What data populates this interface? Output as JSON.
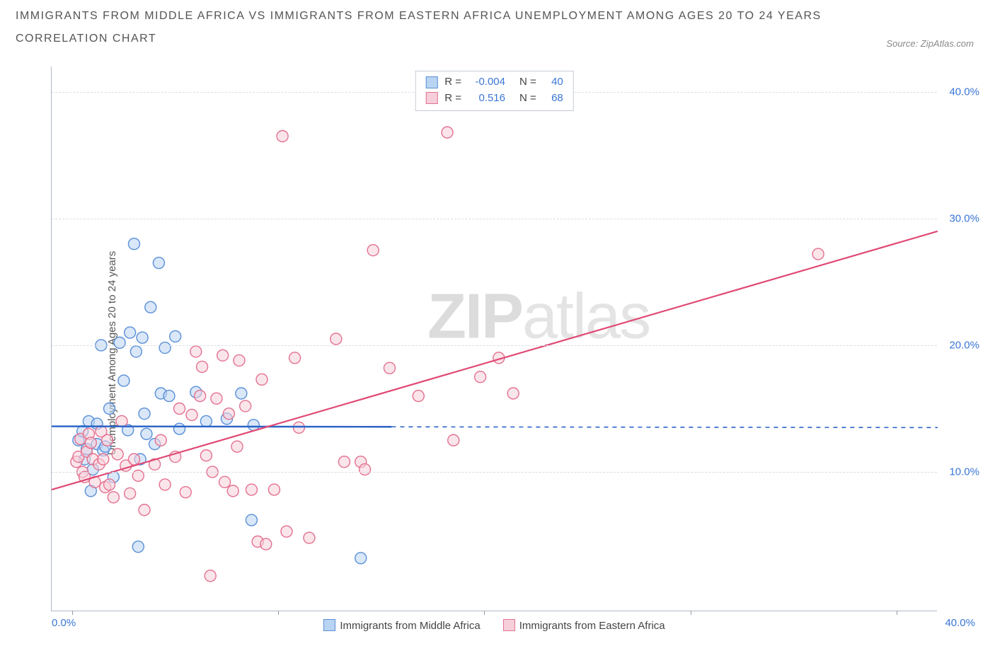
{
  "title_line1": "IMMIGRANTS FROM MIDDLE AFRICA VS IMMIGRANTS FROM EASTERN AFRICA UNEMPLOYMENT AMONG AGES 20 TO 24 YEARS",
  "title_line2": "CORRELATION CHART",
  "source_label": "Source:",
  "source_value": "ZipAtlas.com",
  "y_axis_label": "Unemployment Among Ages 20 to 24 years",
  "watermark_bold": "ZIP",
  "watermark_light": "atlas",
  "legend_top": {
    "rows": [
      {
        "swatch_fill": "#b9d4f2",
        "swatch_border": "#5a8fd8",
        "r_label": "R =",
        "r_value": "-0.004",
        "n_label": "N =",
        "n_value": "40"
      },
      {
        "swatch_fill": "#f6cfda",
        "swatch_border": "#e4718f",
        "r_label": "R =",
        "r_value": "0.516",
        "n_label": "N =",
        "n_value": "68"
      }
    ]
  },
  "legend_bottom": {
    "items": [
      {
        "swatch_fill": "#b9d4f2",
        "swatch_border": "#5a8fd8",
        "label": "Immigrants from Middle Africa"
      },
      {
        "swatch_fill": "#f6cfda",
        "swatch_border": "#e4718f",
        "label": "Immigrants from Eastern Africa"
      }
    ]
  },
  "chart": {
    "type": "scatter",
    "xlim": [
      -1,
      42
    ],
    "ylim": [
      -1,
      42
    ],
    "x_min_label": "0.0%",
    "x_max_label": "40.0%",
    "x_ticks": [
      0,
      10,
      20,
      30,
      40
    ],
    "y_ticks": [
      {
        "value": 10,
        "label": "10.0%"
      },
      {
        "value": 20,
        "label": "20.0%"
      },
      {
        "value": 30,
        "label": "30.0%"
      },
      {
        "value": 40,
        "label": "40.0%"
      }
    ],
    "grid_color": "#d8dce2",
    "background_color": "#ffffff",
    "marker_radius": 8,
    "marker_stroke_width": 1.4,
    "series": [
      {
        "name": "Immigrants from Middle Africa",
        "fill": "#b9d4f2",
        "stroke": "#5a8fd8",
        "fill_opacity": 0.55,
        "trend": {
          "color": "#2a63c7",
          "width": 2.4,
          "solid_xmax": 15.5,
          "y1": 13.6,
          "y2": 13.5
        },
        "points": [
          [
            0.3,
            12.5
          ],
          [
            0.5,
            13.2
          ],
          [
            0.6,
            11.0
          ],
          [
            0.7,
            11.8
          ],
          [
            0.8,
            14.0
          ],
          [
            0.9,
            8.5
          ],
          [
            1.0,
            10.2
          ],
          [
            1.2,
            13.8
          ],
          [
            1.2,
            12.2
          ],
          [
            1.4,
            20.0
          ],
          [
            1.5,
            11.7
          ],
          [
            1.6,
            12.0
          ],
          [
            1.8,
            15.0
          ],
          [
            2.0,
            9.6
          ],
          [
            2.3,
            20.2
          ],
          [
            2.5,
            17.2
          ],
          [
            2.7,
            13.3
          ],
          [
            2.8,
            21.0
          ],
          [
            3.0,
            28.0
          ],
          [
            3.1,
            19.5
          ],
          [
            3.3,
            11.0
          ],
          [
            3.4,
            20.6
          ],
          [
            3.5,
            14.6
          ],
          [
            3.6,
            13.0
          ],
          [
            3.8,
            23.0
          ],
          [
            4.0,
            12.2
          ],
          [
            4.2,
            26.5
          ],
          [
            4.3,
            16.2
          ],
          [
            4.5,
            19.8
          ],
          [
            4.7,
            16.0
          ],
          [
            5.0,
            20.7
          ],
          [
            5.2,
            13.4
          ],
          [
            6.0,
            16.3
          ],
          [
            6.5,
            14.0
          ],
          [
            7.5,
            14.2
          ],
          [
            8.2,
            16.2
          ],
          [
            8.7,
            6.2
          ],
          [
            8.8,
            13.7
          ],
          [
            3.2,
            4.1
          ],
          [
            14.0,
            3.2
          ]
        ]
      },
      {
        "name": "Immigrants from Eastern Africa",
        "fill": "#f6cfda",
        "stroke": "#e4718f",
        "fill_opacity": 0.55,
        "trend": {
          "color": "#e04a75",
          "width": 2.2,
          "solid_xmax": 42,
          "y1": 8.6,
          "y2": 29.0
        },
        "points": [
          [
            0.2,
            10.8
          ],
          [
            0.3,
            11.2
          ],
          [
            0.4,
            12.6
          ],
          [
            0.5,
            10.0
          ],
          [
            0.6,
            9.6
          ],
          [
            0.7,
            11.6
          ],
          [
            0.8,
            13.0
          ],
          [
            0.9,
            12.3
          ],
          [
            1.0,
            11.0
          ],
          [
            1.1,
            9.2
          ],
          [
            1.3,
            10.6
          ],
          [
            1.4,
            13.2
          ],
          [
            1.5,
            11.0
          ],
          [
            1.6,
            8.8
          ],
          [
            1.7,
            12.5
          ],
          [
            1.8,
            9.0
          ],
          [
            2.0,
            8.0
          ],
          [
            2.2,
            11.4
          ],
          [
            2.4,
            14.0
          ],
          [
            2.6,
            10.5
          ],
          [
            2.8,
            8.3
          ],
          [
            3.0,
            11.0
          ],
          [
            3.2,
            9.7
          ],
          [
            3.5,
            7.0
          ],
          [
            4.0,
            10.6
          ],
          [
            4.3,
            12.5
          ],
          [
            4.5,
            9.0
          ],
          [
            5.0,
            11.2
          ],
          [
            5.2,
            15.0
          ],
          [
            5.5,
            8.4
          ],
          [
            5.8,
            14.5
          ],
          [
            6.0,
            19.5
          ],
          [
            6.2,
            16.0
          ],
          [
            6.3,
            18.3
          ],
          [
            6.5,
            11.3
          ],
          [
            6.8,
            10.0
          ],
          [
            7.0,
            15.8
          ],
          [
            7.3,
            19.2
          ],
          [
            7.4,
            9.2
          ],
          [
            7.6,
            14.6
          ],
          [
            7.8,
            8.5
          ],
          [
            8.0,
            12.0
          ],
          [
            8.1,
            18.8
          ],
          [
            8.4,
            15.2
          ],
          [
            8.7,
            8.6
          ],
          [
            9.0,
            4.5
          ],
          [
            9.2,
            17.3
          ],
          [
            9.4,
            4.3
          ],
          [
            9.8,
            8.6
          ],
          [
            10.2,
            36.5
          ],
          [
            10.4,
            5.3
          ],
          [
            10.8,
            19.0
          ],
          [
            11.0,
            13.5
          ],
          [
            11.5,
            4.8
          ],
          [
            12.8,
            20.5
          ],
          [
            13.2,
            10.8
          ],
          [
            14.0,
            10.8
          ],
          [
            14.2,
            10.2
          ],
          [
            14.6,
            27.5
          ],
          [
            15.4,
            18.2
          ],
          [
            16.8,
            16.0
          ],
          [
            18.2,
            36.8
          ],
          [
            18.5,
            12.5
          ],
          [
            19.8,
            17.5
          ],
          [
            20.7,
            19.0
          ],
          [
            21.4,
            16.2
          ],
          [
            6.7,
            1.8
          ],
          [
            36.2,
            27.2
          ]
        ]
      }
    ]
  }
}
